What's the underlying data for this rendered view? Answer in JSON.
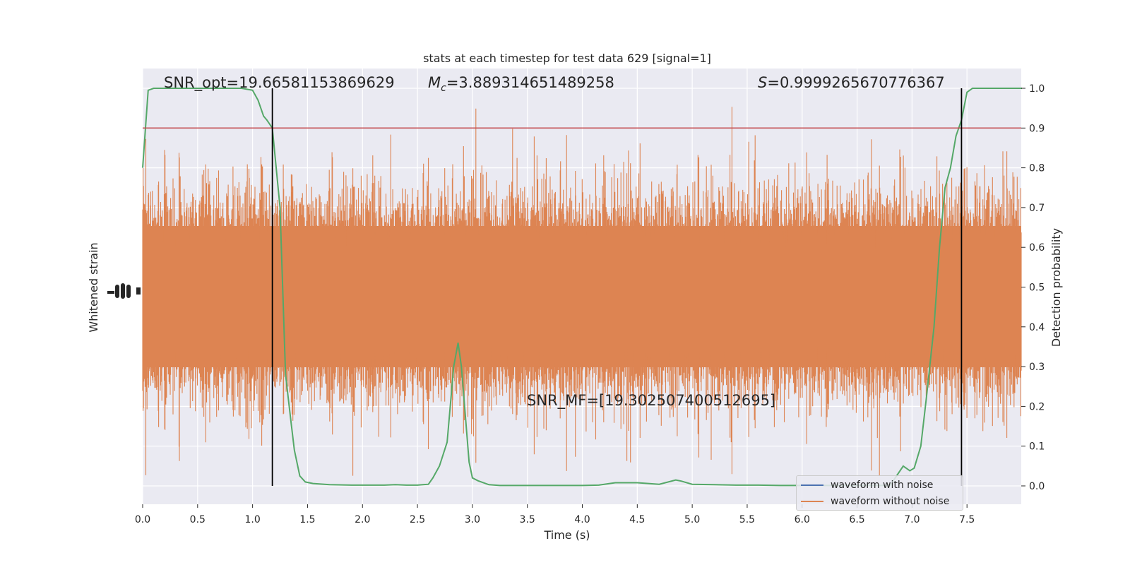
{
  "chart_data": {
    "type": "line",
    "title": "stats at each timestep for test data 629 [signal=1]",
    "xlabel": "Time (s)",
    "ylabel_left": "Whitened strain",
    "ylabel_right": "Detection probability",
    "xlim": [
      0.0,
      8.0
    ],
    "ylim_right": [
      -0.05,
      1.05
    ],
    "x_ticks": [
      "0.0",
      "0.5",
      "1.0",
      "1.5",
      "2.0",
      "2.5",
      "3.0",
      "3.5",
      "4.0",
      "4.5",
      "5.0",
      "5.5",
      "6.0",
      "6.5",
      "7.0",
      "7.5"
    ],
    "y_ticks_right": [
      "0.0",
      "0.1",
      "0.2",
      "0.3",
      "0.4",
      "0.5",
      "0.6",
      "0.7",
      "0.8",
      "0.9",
      "1.0"
    ],
    "grid": true,
    "background": "#eaeaf2",
    "annotations": {
      "snr_opt": "SNR_opt=19.66581153869629",
      "mc_symbol": "M",
      "mc_sub": "c",
      "mc_value": "=3.889314651489258",
      "s_symbol": "S",
      "s_value": "=0.9999265670776367",
      "snr_mf": "SNR_MF=[19.302507400512695]"
    },
    "threshold": {
      "y": 0.9,
      "color": "#c44e52"
    },
    "vertical_lines": [
      1.18,
      7.45
    ],
    "series": [
      {
        "name": "waveform with noise",
        "color": "#4c72b0"
      },
      {
        "name": "waveform without noise",
        "color": "#dd8452"
      }
    ],
    "detection_probability": {
      "color": "#55a868",
      "x": [
        0.0,
        0.05,
        0.1,
        0.2,
        0.3,
        0.4,
        0.5,
        0.6,
        0.7,
        0.8,
        0.9,
        1.0,
        1.05,
        1.1,
        1.13,
        1.18,
        1.25,
        1.3,
        1.35,
        1.38,
        1.43,
        1.48,
        1.55,
        1.7,
        1.9,
        2.1,
        2.2,
        2.3,
        2.4,
        2.5,
        2.55,
        2.6,
        2.64,
        2.7,
        2.77,
        2.83,
        2.87,
        2.9,
        2.97,
        3.0,
        3.05,
        3.15,
        3.25,
        3.4,
        3.6,
        3.8,
        4.0,
        4.15,
        4.3,
        4.5,
        4.7,
        4.85,
        4.9,
        5.0,
        5.2,
        5.4,
        5.6,
        5.8,
        6.0,
        6.2,
        6.4,
        6.6,
        6.8,
        6.92,
        6.98,
        7.02,
        7.08,
        7.13,
        7.2,
        7.25,
        7.3,
        7.35,
        7.4,
        7.45,
        7.5,
        7.55,
        7.6,
        7.7,
        7.8,
        8.0
      ],
      "y": [
        0.8,
        0.995,
        1.0,
        1.0,
        1.0,
        1.0,
        1.0,
        1.0,
        1.0,
        1.0,
        1.0,
        0.995,
        0.97,
        0.93,
        0.92,
        0.9,
        0.7,
        0.28,
        0.16,
        0.09,
        0.025,
        0.01,
        0.006,
        0.003,
        0.002,
        0.002,
        0.002,
        0.003,
        0.002,
        0.002,
        0.003,
        0.004,
        0.02,
        0.05,
        0.11,
        0.3,
        0.36,
        0.3,
        0.06,
        0.02,
        0.013,
        0.003,
        0.001,
        0.001,
        0.001,
        0.001,
        0.001,
        0.002,
        0.008,
        0.008,
        0.004,
        0.015,
        0.012,
        0.004,
        0.003,
        0.002,
        0.002,
        0.001,
        0.001,
        0.001,
        0.001,
        0.001,
        0.001,
        0.05,
        0.038,
        0.045,
        0.1,
        0.22,
        0.4,
        0.6,
        0.75,
        0.8,
        0.88,
        0.92,
        0.99,
        1.0,
        1.0,
        1.0,
        1.0,
        1.0
      ]
    }
  }
}
